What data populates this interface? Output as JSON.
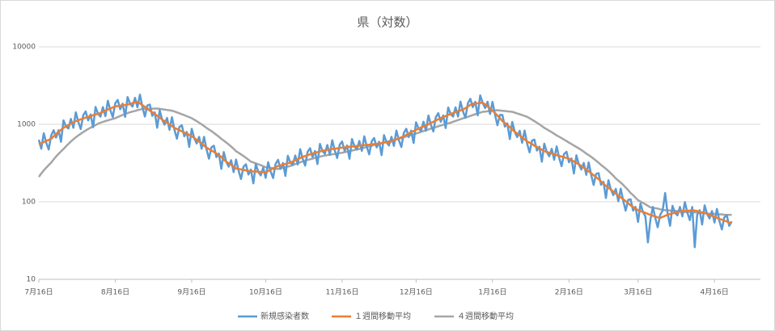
{
  "chart_data": {
    "type": "line",
    "title": "県（対数）",
    "log_scale": true,
    "grid": true,
    "legend": "bottom",
    "ylim": [
      10,
      10000
    ],
    "yticks": [
      10,
      100,
      1000,
      10000
    ],
    "categories": [
      "7月16日",
      null,
      null,
      null,
      null,
      null,
      null,
      null,
      null,
      null,
      null,
      null,
      null,
      null,
      null,
      null,
      null,
      null,
      null,
      null,
      null,
      null,
      null,
      null,
      null,
      null,
      null,
      null,
      null,
      null,
      null,
      "8月16日",
      null,
      null,
      null,
      null,
      null,
      null,
      null,
      null,
      null,
      null,
      null,
      null,
      null,
      null,
      null,
      null,
      null,
      null,
      null,
      null,
      null,
      null,
      null,
      null,
      null,
      null,
      null,
      null,
      null,
      null,
      "9月16日",
      null,
      null,
      null,
      null,
      null,
      null,
      null,
      null,
      null,
      null,
      null,
      null,
      null,
      null,
      null,
      null,
      null,
      null,
      null,
      null,
      null,
      null,
      null,
      null,
      null,
      null,
      null,
      null,
      null,
      "10月16日",
      null,
      null,
      null,
      null,
      null,
      null,
      null,
      null,
      null,
      null,
      null,
      null,
      null,
      null,
      null,
      null,
      null,
      null,
      null,
      null,
      null,
      null,
      null,
      null,
      null,
      null,
      null,
      null,
      null,
      null,
      "11月16日",
      null,
      null,
      null,
      null,
      null,
      null,
      null,
      null,
      null,
      null,
      null,
      null,
      null,
      null,
      null,
      null,
      null,
      null,
      null,
      null,
      null,
      null,
      null,
      null,
      null,
      null,
      null,
      null,
      null,
      "12月16日",
      null,
      null,
      null,
      null,
      null,
      null,
      null,
      null,
      null,
      null,
      null,
      null,
      null,
      null,
      null,
      null,
      null,
      null,
      null,
      null,
      null,
      null,
      null,
      null,
      null,
      null,
      null,
      null,
      null,
      null,
      "1月16日",
      null,
      null,
      null,
      null,
      null,
      null,
      null,
      null,
      null,
      null,
      null,
      null,
      null,
      null,
      null,
      null,
      null,
      null,
      null,
      null,
      null,
      null,
      null,
      null,
      null,
      null,
      null,
      null,
      null,
      null,
      "2月16日",
      null,
      null,
      null,
      null,
      null,
      null,
      null,
      null,
      null,
      null,
      null,
      null,
      null,
      null,
      null,
      null,
      null,
      null,
      null,
      null,
      null,
      null,
      null,
      null,
      null,
      null,
      null,
      "3月16日",
      null,
      null,
      null,
      null,
      null,
      null,
      null,
      null,
      null,
      null,
      null,
      null,
      null,
      null,
      null,
      null,
      null,
      null,
      null,
      null,
      null,
      null,
      null,
      null,
      null,
      null,
      null,
      null,
      null,
      null,
      "4月16日",
      null,
      null,
      null,
      null,
      null,
      null,
      null
    ],
    "series": [
      {
        "name": "新規感染者数",
        "color": "#5b9bd5",
        "values": [
          633,
          485,
          767,
          580,
          473,
          715,
          840,
          675,
          840,
          595,
          1125,
          940,
          882,
          1173,
          901,
          1430,
          1074,
          870,
          1309,
          1464,
          1125,
          1344,
          917,
          1675,
          1370,
          1260,
          1668,
          1275,
          2015,
          1520,
          1238,
          1870,
          2064,
          1566,
          1848,
          1246,
          2250,
          1840,
          1692,
          2197,
          1658,
          2418,
          1682,
          1260,
          1749,
          1800,
          1287,
          1428,
          903,
          1525,
          1150,
          990,
          1208,
          850,
          1235,
          855,
          653,
          924,
          972,
          702,
          798,
          511,
          875,
          670,
          567,
          690,
          485,
          689,
          475,
          360,
          506,
          528,
          378,
          420,
          266,
          438,
          330,
          284,
          345,
          242,
          351,
          253,
          197,
          284,
          305,
          225,
          261,
          173,
          308,
          244,
          219,
          277,
          204,
          325,
          247,
          203,
          308,
          348,
          266,
          317,
          216,
          393,
          320,
          299,
          396,
          303,
          478,
          361,
          293,
          440,
          492,
          378,
          452,
          307,
          558,
          454,
          416,
          541,
          404,
          624,
          461,
          368,
          545,
          600,
          454,
          534,
          359,
          646,
          521,
          473,
          610,
          454,
          701,
          516,
          410,
          606,
          667,
          504,
          595,
          401,
          725,
          587,
          534,
          690,
          527,
          832,
          627,
          510,
          770,
          876,
          684,
          830,
          574,
          1063,
          880,
          819,
          1081,
          825,
          1300,
          988,
          810,
          1232,
          1392,
          1080,
          1302,
          896,
          1650,
          1360,
          1260,
          1656,
          1258,
          1963,
          1473,
          1215,
          1870,
          2136,
          1665,
          1953,
          1309,
          2363,
          1900,
          1620,
          1955,
          1360,
          1950,
          1330,
          975,
          1320,
          1320,
          936,
          1029,
          644,
          1075,
          800,
          684,
          828,
          578,
          832,
          570,
          435,
          616,
          636,
          459,
          515,
          329,
          563,
          440,
          387,
          483,
          349,
          520,
          372,
          288,
          414,
          442,
          324,
          363,
          232,
          398,
          304,
          261,
          317,
          223,
          322,
          222,
          165,
          229,
          235,
          166,
          181,
          112,
          190,
          144,
          122,
          147,
          102,
          148,
          103,
          77,
          106,
          108,
          77,
          86,
          55,
          95,
          74,
          65,
          30,
          58,
          86,
          62,
          47,
          68,
          77,
          130,
          71,
          49,
          89,
          72,
          67,
          86,
          65,
          99,
          73,
          58,
          86,
          26,
          68,
          78,
          51,
          90,
          70,
          61,
          76,
          54,
          81,
          57,
          44,
          63,
          67,
          49,
          56
        ]
      },
      {
        "name": "１週間移動平均",
        "color": "#ed7d31",
        "values": [
          550,
          570,
          590,
          610,
          630,
          650,
          700,
          750,
          800,
          850,
          900,
          940,
          980,
          1020,
          1060,
          1100,
          1130,
          1160,
          1190,
          1220,
          1250,
          1280,
          1310,
          1340,
          1370,
          1400,
          1450,
          1500,
          1550,
          1600,
          1650,
          1700,
          1720,
          1740,
          1760,
          1780,
          1800,
          1840,
          1880,
          1910,
          1950,
          1860,
          1770,
          1680,
          1590,
          1500,
          1430,
          1360,
          1290,
          1220,
          1150,
          1100,
          1050,
          1000,
          950,
          900,
          870,
          840,
          810,
          780,
          760,
          730,
          700,
          670,
          630,
          600,
          570,
          530,
          500,
          480,
          460,
          440,
          420,
          400,
          380,
          350,
          330,
          315,
          300,
          285,
          270,
          266,
          262,
          258,
          254,
          250,
          249,
          247,
          246,
          244,
          243,
          241,
          240,
          250,
          260,
          270,
          280,
          290,
          296,
          302,
          308,
          314,
          320,
          332,
          344,
          356,
          368,
          380,
          390,
          400,
          410,
          420,
          430,
          438,
          446,
          454,
          462,
          470,
          475,
          480,
          485,
          490,
          495,
          500,
          504,
          509,
          513,
          517,
          521,
          526,
          530,
          534,
          539,
          543,
          547,
          551,
          556,
          560,
          567,
          573,
          580,
          587,
          593,
          600,
          620,
          640,
          660,
          680,
          700,
          730,
          760,
          790,
          820,
          850,
          880,
          910,
          940,
          970,
          1000,
          1040,
          1080,
          1120,
          1160,
          1200,
          1240,
          1280,
          1320,
          1360,
          1400,
          1440,
          1480,
          1510,
          1550,
          1620,
          1700,
          1780,
          1850,
          1860,
          1870,
          1890,
          1900,
          1800,
          1700,
          1600,
          1500,
          1400,
          1300,
          1200,
          1100,
          1040,
          980,
          920,
          860,
          800,
          760,
          720,
          680,
          640,
          600,
          580,
          560,
          530,
          510,
          490,
          470,
          450,
          440,
          430,
          420,
          410,
          400,
          392,
          384,
          376,
          368,
          360,
          346,
          332,
          318,
          304,
          290,
          276,
          262,
          248,
          234,
          220,
          208,
          196,
          184,
          172,
          160,
          152,
          144,
          136,
          128,
          120,
          114,
          108,
          102,
          96,
          90,
          86,
          82,
          78,
          76,
          74,
          72,
          70,
          68,
          66,
          65,
          63,
          62,
          64,
          66,
          68,
          70,
          71,
          72,
          74,
          75,
          76,
          76,
          77,
          77,
          78,
          77,
          76,
          74,
          73,
          72,
          70,
          68,
          66,
          64,
          62,
          60,
          59,
          57,
          56,
          54,
          53
        ]
      },
      {
        "name": "４週間移動平均",
        "color": "#a5a5a5",
        "values": [
          210,
          232,
          254,
          276,
          298,
          320,
          352,
          384,
          416,
          448,
          480,
          520,
          560,
          600,
          640,
          680,
          718,
          756,
          794,
          832,
          870,
          906,
          942,
          978,
          1014,
          1050,
          1075,
          1100,
          1125,
          1150,
          1175,
          1200,
          1240,
          1280,
          1320,
          1360,
          1400,
          1430,
          1460,
          1490,
          1520,
          1550,
          1580,
          1583,
          1587,
          1590,
          1593,
          1597,
          1600,
          1583,
          1567,
          1550,
          1533,
          1517,
          1500,
          1463,
          1425,
          1388,
          1350,
          1313,
          1275,
          1238,
          1200,
          1150,
          1100,
          1050,
          1000,
          950,
          900,
          858,
          817,
          775,
          733,
          692,
          650,
          617,
          583,
          550,
          517,
          483,
          450,
          430,
          410,
          390,
          370,
          350,
          330,
          322,
          313,
          305,
          297,
          288,
          280,
          277,
          274,
          271,
          268,
          265,
          270,
          275,
          280,
          285,
          290,
          298,
          307,
          315,
          323,
          332,
          340,
          347,
          354,
          361,
          369,
          376,
          383,
          390,
          395,
          400,
          405,
          410,
          415,
          420,
          425,
          430,
          437,
          444,
          451,
          459,
          466,
          473,
          480,
          490,
          500,
          510,
          520,
          530,
          540,
          550,
          560,
          571,
          583,
          594,
          605,
          616,
          628,
          639,
          650,
          666,
          681,
          697,
          713,
          729,
          744,
          760,
          780,
          800,
          820,
          840,
          860,
          880,
          900,
          921,
          943,
          964,
          986,
          1007,
          1029,
          1050,
          1079,
          1107,
          1136,
          1164,
          1193,
          1221,
          1250,
          1283,
          1317,
          1350,
          1383,
          1417,
          1450,
          1462,
          1473,
          1485,
          1497,
          1508,
          1520,
          1508,
          1497,
          1485,
          1473,
          1462,
          1450,
          1417,
          1383,
          1350,
          1317,
          1283,
          1250,
          1200,
          1150,
          1100,
          1050,
          1000,
          950,
          900,
          864,
          828,
          792,
          756,
          720,
          692,
          664,
          636,
          608,
          580,
          557,
          534,
          511,
          489,
          466,
          443,
          420,
          400,
          380,
          360,
          340,
          320,
          300,
          283,
          267,
          250,
          233,
          217,
          200,
          188,
          177,
          165,
          153,
          142,
          130,
          122,
          113,
          105,
          101,
          97,
          93,
          89,
          85,
          84,
          83,
          82,
          80,
          79,
          78,
          78,
          77,
          77,
          76,
          76,
          75,
          75,
          74,
          74,
          74,
          73,
          73,
          73,
          72,
          72,
          71,
          71,
          70,
          70,
          70,
          69,
          69,
          69,
          68,
          68,
          68,
          68
        ]
      }
    ]
  }
}
